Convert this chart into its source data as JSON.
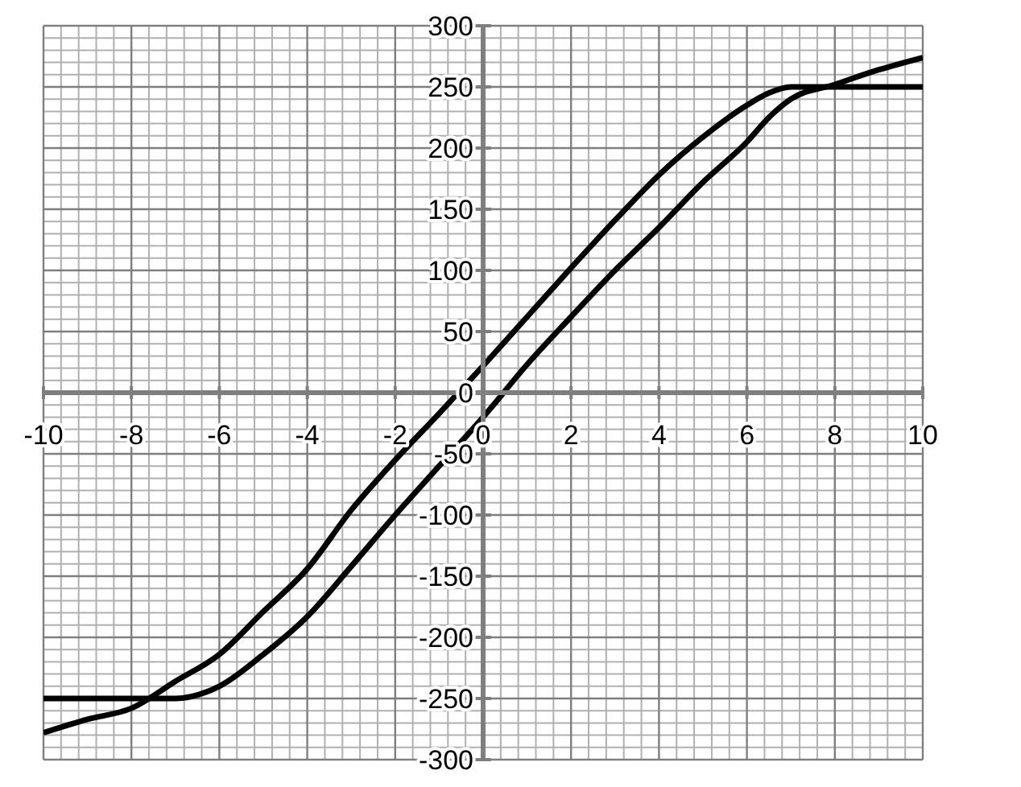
{
  "chart_data": {
    "type": "line",
    "x": [
      -10,
      -9,
      -8,
      -7,
      -6,
      -5,
      -4,
      -3,
      -2,
      -1,
      0,
      1,
      2,
      3,
      4,
      5,
      6,
      6.5,
      7,
      8,
      9,
      10
    ],
    "series": [
      {
        "color": "#000000",
        "values": [
          -278,
          -267,
          -258,
          -236,
          -214,
          -179,
          -144,
          -96,
          -55,
          -17,
          22,
          62,
          102,
          141,
          178,
          209,
          235,
          245,
          250,
          250,
          250,
          250
        ]
      },
      {
        "color": "#000000",
        "values": [
          -250,
          -250,
          -250,
          -250,
          -240,
          -214,
          -183,
          -142,
          -100,
          -60,
          -20,
          23,
          62,
          100,
          135,
          172,
          205,
          225,
          240,
          252,
          264,
          274
        ]
      }
    ],
    "xlim": [
      -10,
      10
    ],
    "ylim": [
      -300,
      300
    ],
    "xticks": [
      -10,
      -8,
      -6,
      -4,
      -2,
      0,
      2,
      4,
      6,
      8,
      10
    ],
    "yticks": [
      -300,
      -250,
      -200,
      -150,
      -100,
      -50,
      0,
      50,
      100,
      150,
      200,
      250,
      300
    ],
    "grid": true,
    "line_style": "solid",
    "marker": "none"
  }
}
